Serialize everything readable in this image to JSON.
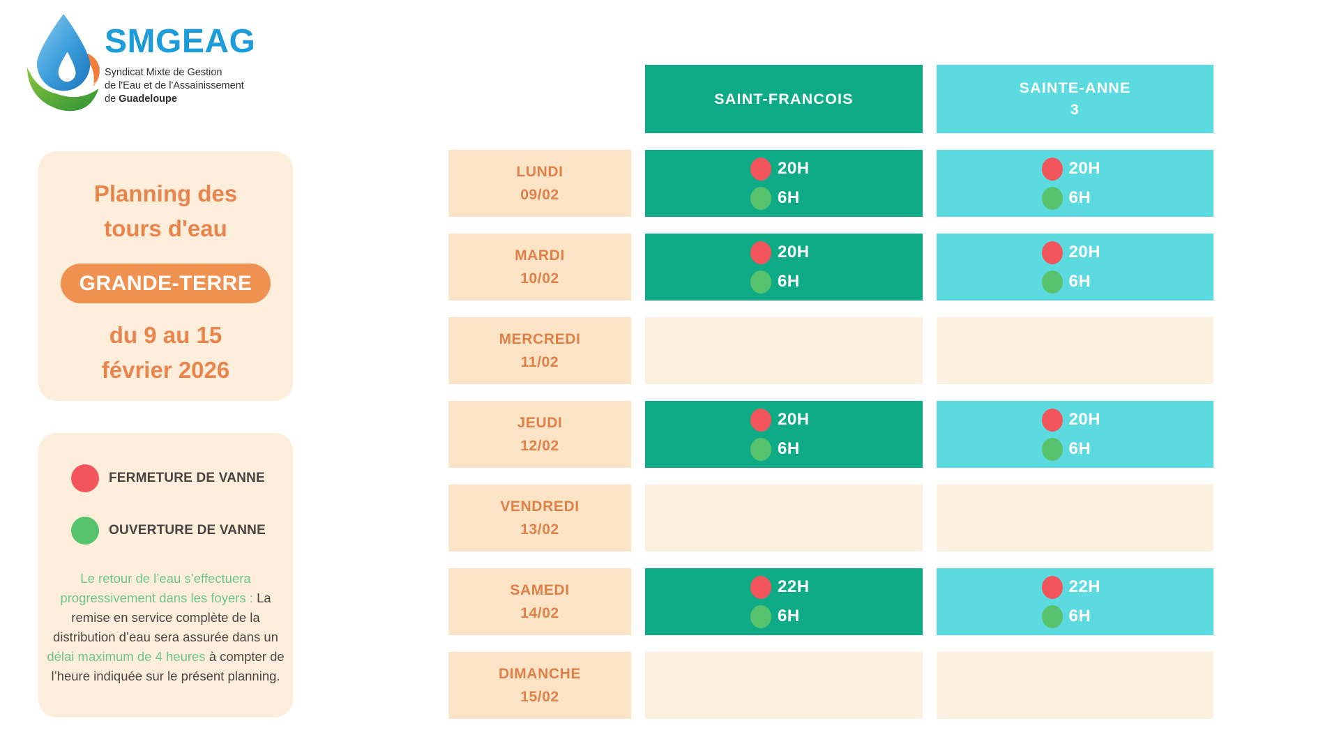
{
  "logo": {
    "brand": "SMGEAG",
    "subtitle_line1": "Syndicat Mixte de Gestion",
    "subtitle_line2": "de l'Eau et de l'Assainissement",
    "subtitle_line3_prefix": "de ",
    "subtitle_line3_bold": "Guadeloupe"
  },
  "title_card": {
    "title_line1": "Planning des",
    "title_line2": "tours d'eau",
    "region_badge": "GRANDE-TERRE",
    "period_line1": "du 9 au 15",
    "period_line2": "février 2026"
  },
  "legend": {
    "items": [
      {
        "icon": "close-valve-icon",
        "color": "#F2555C",
        "label": "FERMETURE DE VANNE"
      },
      {
        "icon": "open-valve-icon",
        "color": "#57C46D",
        "label": "OUVERTURE DE VANNE"
      }
    ],
    "note_green_1": "Le retour de l’eau s’effectuera progressivement dans les foyers :",
    "note_dark_1": " La remise en service complète de la distribution d’eau sera assurée dans un ",
    "note_green_2": "délai maximum de 4 heures",
    "note_dark_2": " à compter de l’heure indiquée sur le présent planning."
  },
  "schedule": {
    "columns": [
      {
        "id": "saint-francois",
        "label_lines": [
          "SAINT-FRANCOIS"
        ],
        "color": "#0FAB87"
      },
      {
        "id": "sainte-anne-3",
        "label_lines": [
          "SAINTE-ANNE",
          "3"
        ],
        "color": "#5BDBE0"
      }
    ],
    "rows": [
      {
        "day": "LUNDI",
        "date": "09/02",
        "cells": [
          {
            "close": "20H",
            "open": "6H"
          },
          {
            "close": "20H",
            "open": "6H"
          }
        ]
      },
      {
        "day": "MARDI",
        "date": "10/02",
        "cells": [
          {
            "close": "20H",
            "open": "6H"
          },
          {
            "close": "20H",
            "open": "6H"
          }
        ]
      },
      {
        "day": "MERCREDI",
        "date": "11/02",
        "cells": [
          null,
          null
        ]
      },
      {
        "day": "JEUDI",
        "date": "12/02",
        "cells": [
          {
            "close": "20H",
            "open": "6H"
          },
          {
            "close": "20H",
            "open": "6H"
          }
        ]
      },
      {
        "day": "VENDREDI",
        "date": "13/02",
        "cells": [
          null,
          null
        ]
      },
      {
        "day": "SAMEDI",
        "date": "14/02",
        "cells": [
          {
            "close": "22H",
            "open": "6H"
          },
          {
            "close": "22H",
            "open": "6H"
          }
        ]
      },
      {
        "day": "DIMANCHE",
        "date": "15/02",
        "cells": [
          null,
          null
        ]
      }
    ]
  },
  "colors": {
    "valve_close": "#F2555C",
    "valve_open": "#57C46D",
    "brand_blue": "#1C9CD8",
    "orange_text": "#E8854D",
    "pill_orange": "#EF9150",
    "card_cream": "#FCEEDB",
    "day_cell": "#FBE4C5",
    "empty_cell": "#FCF0E0",
    "col_green": "#0FAB87",
    "col_cyan": "#5BDBE0"
  }
}
